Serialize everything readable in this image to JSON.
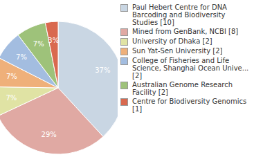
{
  "chart_data": {
    "type": "pie",
    "categories": [
      "Paul Hebert Centre for DNA Barcoding and Biodiversity Studies [10]",
      "Mined from GenBank, NCBI [8]",
      "University of Dhaka [2]",
      "Sun Yat-Sen University [2]",
      "College of Fisheries and Life Science, Shanghai Ocean Unive... [2]",
      "Australian Genome Research Facility [2]",
      "Centre for Biodiversity Genomics [1]"
    ],
    "values": [
      37,
      29,
      7,
      7,
      7,
      7,
      3
    ],
    "value_labels": [
      "37%",
      "29%",
      "7%",
      "7%",
      "7%",
      "7%",
      "3%"
    ],
    "data_labels": true,
    "colors": [
      "#c9d6e3",
      "#e0a9a3",
      "#e0e3a4",
      "#efb07a",
      "#a3bde0",
      "#9ec27a",
      "#d9694f"
    ],
    "legend": "right"
  }
}
